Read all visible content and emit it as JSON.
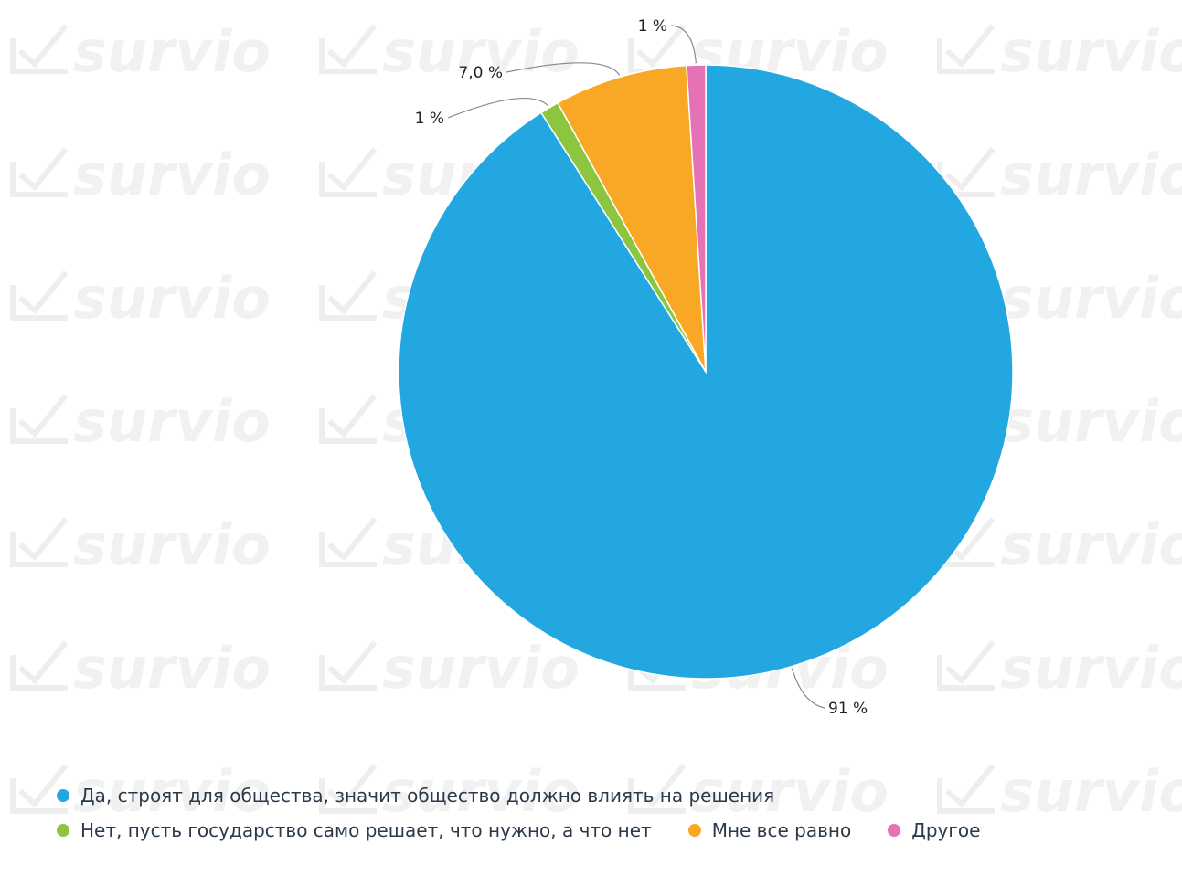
{
  "chart_data": {
    "type": "pie",
    "title": "",
    "start_angle_deg": 0,
    "direction": "clockwise",
    "legend_position": "bottom-left",
    "slices": [
      {
        "name": "Да, строят для общества, значит общество должно влиять на решения",
        "value": 91,
        "label": "91 %",
        "color": "#22a7e0"
      },
      {
        "name": "Нет, пусть государство само решает, что нужно, а что нет",
        "value": 1,
        "label": "1 %",
        "color": "#8cc63f"
      },
      {
        "name": "Мне все равно",
        "value": 7.0,
        "label": "7,0 %",
        "color": "#f9a825"
      },
      {
        "name": "Другое",
        "value": 1,
        "label": "1 %",
        "color": "#e572b4"
      }
    ]
  },
  "watermark": {
    "text": "survio",
    "color": "#f1f1f1"
  }
}
